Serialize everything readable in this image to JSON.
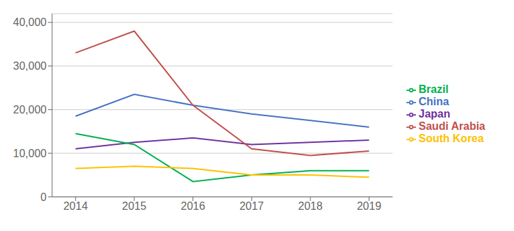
{
  "chart_data": {
    "type": "line",
    "x": [
      2014,
      2015,
      2016,
      2017,
      2018,
      2019
    ],
    "xlim": [
      2013.6,
      2019.4
    ],
    "xticks": [
      2014,
      2015,
      2016,
      2017,
      2018,
      2019
    ],
    "ylim": [
      0,
      42000
    ],
    "yticks": [
      0,
      {
        "value": 10000,
        "label": "10,000"
      },
      {
        "value": 20000,
        "label": "20,000"
      },
      {
        "value": 30000,
        "label": "30,000"
      },
      {
        "value": 40000,
        "label": "40,000"
      }
    ],
    "grid": true,
    "legend": "right",
    "series": [
      {
        "name": "China",
        "color": "#4472C4",
        "values": [
          18500,
          23500,
          21000,
          19000,
          17500,
          16000
        ]
      },
      {
        "name": "Japan",
        "color": "#7030A0",
        "values": [
          11000,
          12500,
          13500,
          12000,
          12500,
          13000
        ]
      },
      {
        "name": "Saudi Arabia",
        "color": "#C0504D",
        "values": [
          33000,
          38000,
          21000,
          11000,
          9500,
          10500
        ]
      },
      {
        "name": "Brazil",
        "color": "#00B050",
        "values": [
          14500,
          12000,
          3500,
          5000,
          6000,
          6000
        ]
      },
      {
        "name": "South Korea",
        "color": "#FFC000",
        "values": [
          6500,
          7000,
          6500,
          5000,
          5000,
          4500
        ]
      }
    ]
  }
}
